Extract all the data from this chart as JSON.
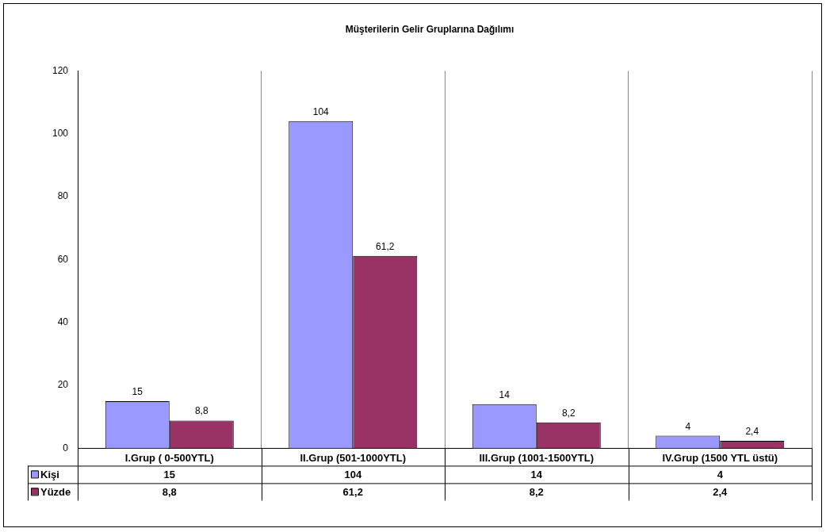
{
  "chart_data": {
    "type": "bar",
    "title": "Müşterilerin Gelir Gruplarına Dağılımı",
    "categories": [
      "I.Grup ( 0-500YTL)",
      "II.Grup (501-1000YTL)",
      "III.Grup (1001-1500YTL)",
      "IV.Grup (1500 YTL üstü)"
    ],
    "series": [
      {
        "name": "Kişi",
        "color": "#9999ff",
        "values": [
          15,
          104,
          14,
          4
        ],
        "value_labels": [
          "15",
          "104",
          "14",
          "4"
        ]
      },
      {
        "name": "Yüzde",
        "color": "#993366",
        "values": [
          8.8,
          61.2,
          8.2,
          2.4
        ],
        "value_labels": [
          "8,8",
          "61,2",
          "8,2",
          "2,4"
        ]
      }
    ],
    "ylim": [
      0,
      120
    ],
    "yticks": [
      0,
      20,
      40,
      60,
      80,
      100,
      120
    ],
    "grid": "x",
    "legend": "bottom left"
  }
}
